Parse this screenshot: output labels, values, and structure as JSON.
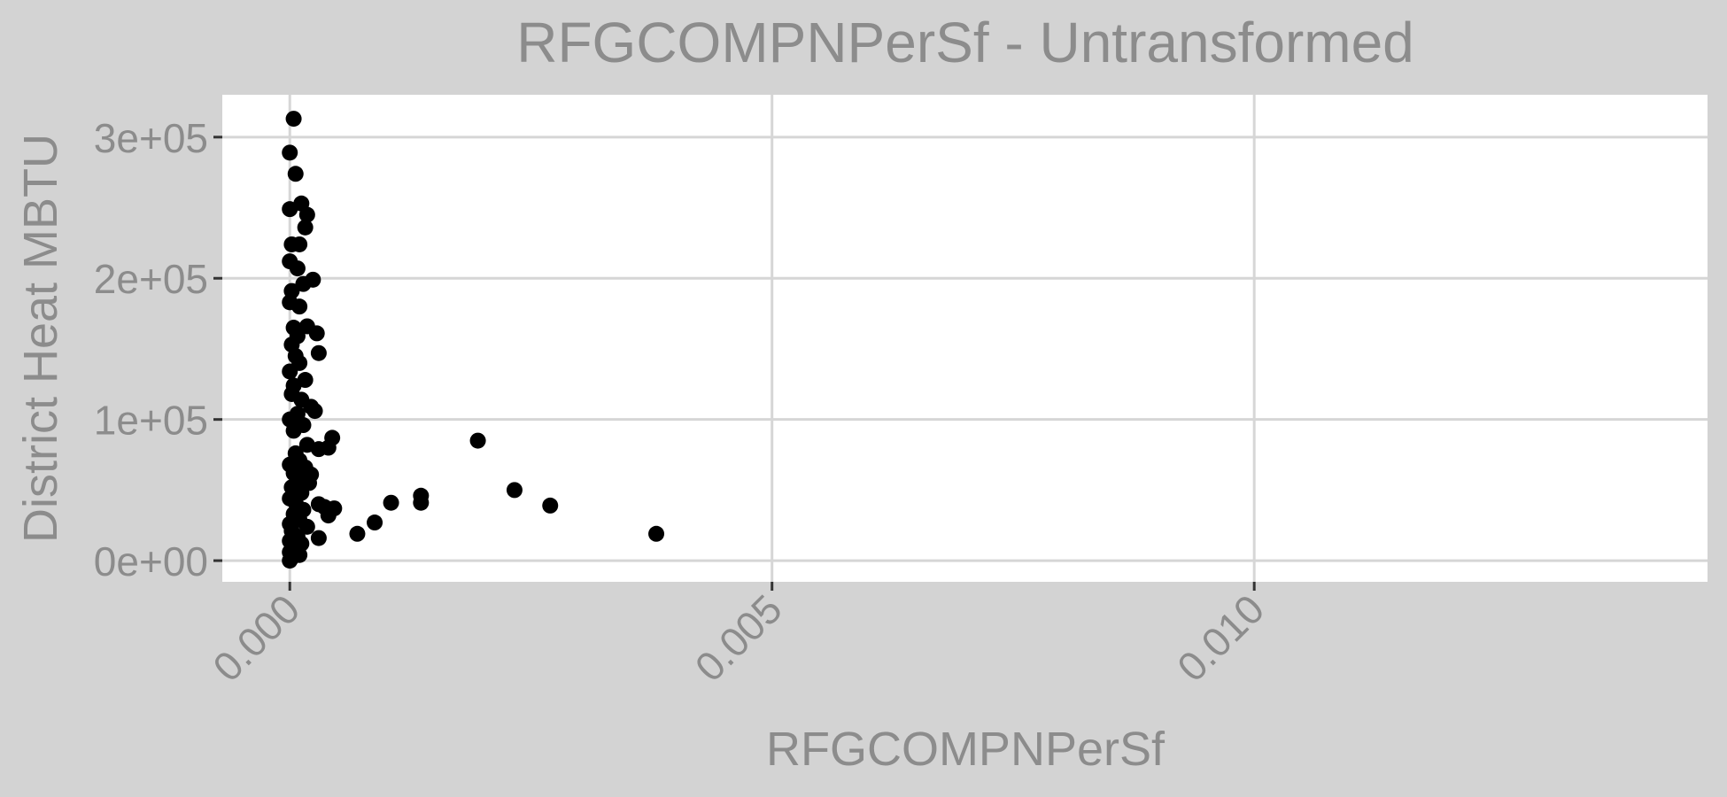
{
  "chart_data": {
    "type": "scatter",
    "title": "RFGCOMPNPerSf - Untransformed",
    "xlabel": "RFGCOMPNPerSf",
    "ylabel": "District Heat MBTU",
    "xlim": [
      -0.0007,
      0.0147
    ],
    "ylim": [
      -15000,
      330000
    ],
    "x_ticks": [
      0.0,
      0.005,
      0.01
    ],
    "x_tick_labels": [
      "0.000",
      "0.005",
      "0.010"
    ],
    "y_ticks": [
      0,
      100000,
      200000,
      300000
    ],
    "y_tick_labels": [
      "0e+00",
      "1e+05",
      "2e+05",
      "3e+05"
    ],
    "grid": true,
    "legend": "none",
    "point_color": "#000000",
    "panel_background": "#ffffff",
    "plot_background": "#d3d3d3",
    "grid_color": "#d6d6d6",
    "text_color": "#8c8c8c",
    "points": [
      [
        4e-05,
        313000
      ],
      [
        0.0,
        289000
      ],
      [
        6e-05,
        274000
      ],
      [
        0.0,
        249000
      ],
      [
        0.00012,
        253000
      ],
      [
        0.00018,
        245000
      ],
      [
        0.00016,
        236000
      ],
      [
        2e-05,
        224000
      ],
      [
        0.0001,
        224000
      ],
      [
        0.0,
        212000
      ],
      [
        8e-05,
        207000
      ],
      [
        0.00024,
        199000
      ],
      [
        0.00014,
        196000
      ],
      [
        2e-05,
        191000
      ],
      [
        0.0,
        183000
      ],
      [
        0.0001,
        180000
      ],
      [
        0.00018,
        166000
      ],
      [
        0.00028,
        161000
      ],
      [
        4e-05,
        165000
      ],
      [
        8e-05,
        159000
      ],
      [
        2e-05,
        153000
      ],
      [
        0.0003,
        147000
      ],
      [
        6e-05,
        145000
      ],
      [
        0.0001,
        140000
      ],
      [
        0.0,
        134000
      ],
      [
        0.00016,
        128000
      ],
      [
        4e-05,
        124000
      ],
      [
        2e-05,
        118000
      ],
      [
        0.00012,
        114000
      ],
      [
        0.00022,
        109000
      ],
      [
        0.00026,
        106000
      ],
      [
        8e-05,
        104000
      ],
      [
        0.0,
        100000
      ],
      [
        0.00014,
        96000
      ],
      [
        4e-05,
        92000
      ],
      [
        0.00044,
        87000
      ],
      [
        0.0004,
        80000
      ],
      [
        0.0003,
        79000
      ],
      [
        0.00018,
        82000
      ],
      [
        6e-05,
        76000
      ],
      [
        0.0001,
        71000
      ],
      [
        0.0,
        68000
      ],
      [
        0.00016,
        66000
      ],
      [
        4e-05,
        62000
      ],
      [
        0.00022,
        61000
      ],
      [
        8e-05,
        57000
      ],
      [
        0.0002,
        55000
      ],
      [
        2e-05,
        52000
      ],
      [
        0.00012,
        48000
      ],
      [
        0.0,
        44000
      ],
      [
        6e-05,
        41000
      ],
      [
        0.0003,
        40000
      ],
      [
        0.00036,
        38000
      ],
      [
        0.0004,
        32000
      ],
      [
        0.00046,
        37000
      ],
      [
        0.00014,
        36000
      ],
      [
        4e-05,
        33000
      ],
      [
        0.0001,
        29000
      ],
      [
        0.0,
        26000
      ],
      [
        0.00018,
        24000
      ],
      [
        2e-05,
        21000
      ],
      [
        0.0003,
        16000
      ],
      [
        8e-05,
        17000
      ],
      [
        0.0,
        14000
      ],
      [
        0.00012,
        12000
      ],
      [
        4e-05,
        9000
      ],
      [
        0.0,
        6000
      ],
      [
        0.0001,
        4000
      ],
      [
        2e-05,
        2000
      ],
      [
        0.0,
        0
      ],
      [
        0.0007,
        19000
      ],
      [
        0.00088,
        27000
      ],
      [
        0.00105,
        41000
      ],
      [
        0.00136,
        46000
      ],
      [
        0.00136,
        41000
      ],
      [
        0.00195,
        85000
      ],
      [
        0.00233,
        50000
      ],
      [
        0.0027,
        39000
      ],
      [
        0.0038,
        19000
      ]
    ]
  }
}
